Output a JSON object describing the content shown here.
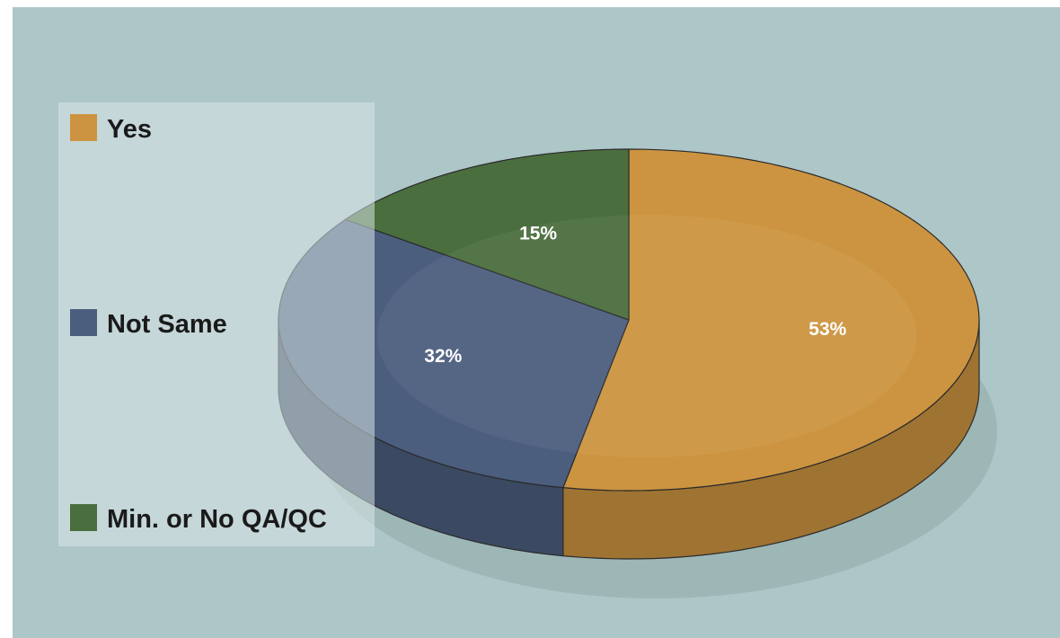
{
  "chart_data": {
    "type": "pie",
    "style": "3d",
    "legend_position": "left",
    "series": [
      {
        "name": "Yes",
        "value": 53,
        "label": "53%",
        "color": "#cc9440"
      },
      {
        "name": "Not Same",
        "value": 32,
        "label": "32%",
        "color": "#4b5e7e"
      },
      {
        "name": "Min. or No QA/QC",
        "value": 15,
        "label": "15%",
        "color": "#4a6e3e"
      }
    ],
    "background_color": "#adc6c7"
  }
}
